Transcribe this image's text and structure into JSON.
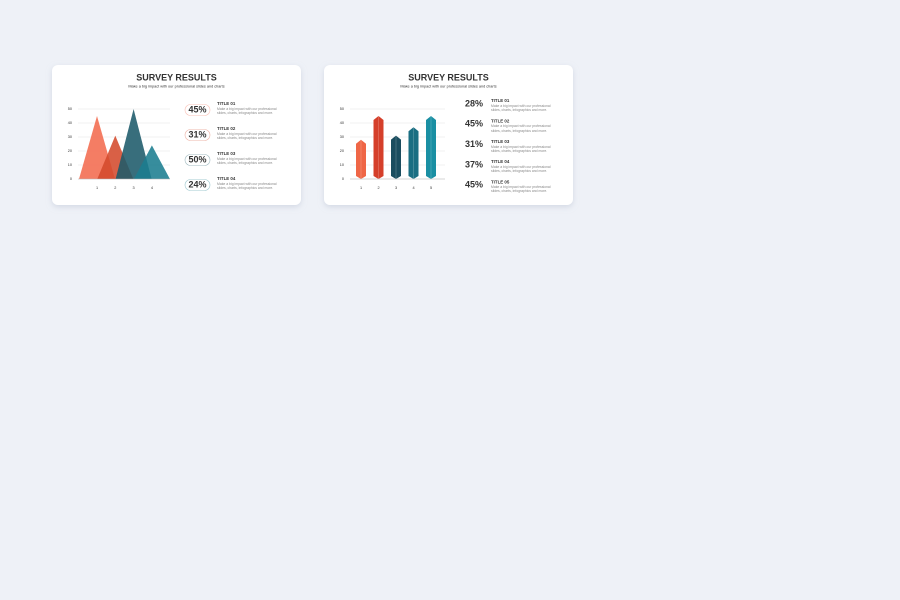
{
  "chart_data": [
    {
      "type": "triangle",
      "title": "SURVEY RESULTS",
      "subtitle": "Make a big impact with our professional slides and charts",
      "categories": [
        "1",
        "2",
        "3",
        "4"
      ],
      "values": [
        45,
        31,
        50,
        24
      ],
      "value_labels": [
        "45%",
        "31%",
        "50%",
        "24%"
      ],
      "colors": [
        "#f26b4f",
        "#d44a2c",
        "#1d5a6a",
        "#1b7d8f"
      ],
      "item_titles": [
        "TITLE 01",
        "TITLE 02",
        "TITLE 03",
        "TITLE 04"
      ],
      "item_texts": [
        "Make a big impact with our professional slides, charts, infographics and more.",
        "Make a big impact with our professional slides, charts, infographics and more.",
        "Make a big impact with our professional slides, charts, infographics and more.",
        "Make a big impact with our professional slides, charts, infographics and more."
      ],
      "ylim": [
        0,
        50
      ],
      "yticks": [
        0,
        10,
        20,
        30,
        40,
        50
      ],
      "grid": true
    },
    {
      "type": "bar",
      "title": "SURVEY RESULTS",
      "subtitle": "Make a big impact with our professional slides and charts",
      "categories": [
        "1",
        "2",
        "3",
        "4",
        "5"
      ],
      "values": [
        28,
        45,
        31,
        37,
        45
      ],
      "value_labels": [
        "28%",
        "45%",
        "31%",
        "37%",
        "45%"
      ],
      "colors": [
        "#ef6646",
        "#d53f2a",
        "#1a4d5f",
        "#1a6e82",
        "#1a8fa3"
      ],
      "item_titles": [
        "TITLE 01",
        "TITLE 02",
        "TITLE 03",
        "TITLE 04",
        "TITLE 05"
      ],
      "item_texts": [
        "Make a big impact with our professional slides, charts, infographics and more.",
        "Make a big impact with our professional slides, charts, infographics and more.",
        "Make a big impact with our professional slides, charts, infographics and more.",
        "Make a big impact with our professional slides, charts, infographics and more.",
        "Make a big impact with our professional slides, charts, infographics and more."
      ],
      "ylim": [
        0,
        50
      ],
      "yticks": [
        0,
        10,
        20,
        30,
        40,
        50
      ],
      "grid": true
    }
  ]
}
